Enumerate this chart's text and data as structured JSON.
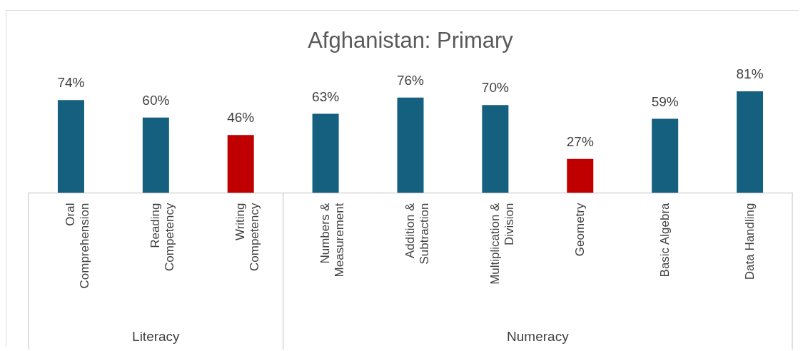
{
  "chart_data": {
    "type": "bar",
    "title": "Afghanistan: Primary",
    "categories": [
      "Oral Comprehension",
      "Reading Competency",
      "Writing Competency",
      "Numbers & Measurement",
      "Addition & Subtraction",
      "Multiplication & Division",
      "Geometry",
      "Basic Algebra",
      "Data Handling"
    ],
    "values": [
      74,
      60,
      46,
      63,
      76,
      70,
      27,
      59,
      81
    ],
    "colors": [
      "#155f7f",
      "#155f7f",
      "#c00000",
      "#155f7f",
      "#155f7f",
      "#155f7f",
      "#c00000",
      "#155f7f",
      "#155f7f"
    ],
    "value_labels": [
      "74%",
      "60%",
      "46%",
      "63%",
      "76%",
      "70%",
      "27%",
      "59%",
      "81%"
    ],
    "annotations": [
      "Literacy",
      "Numeracy"
    ]
  }
}
